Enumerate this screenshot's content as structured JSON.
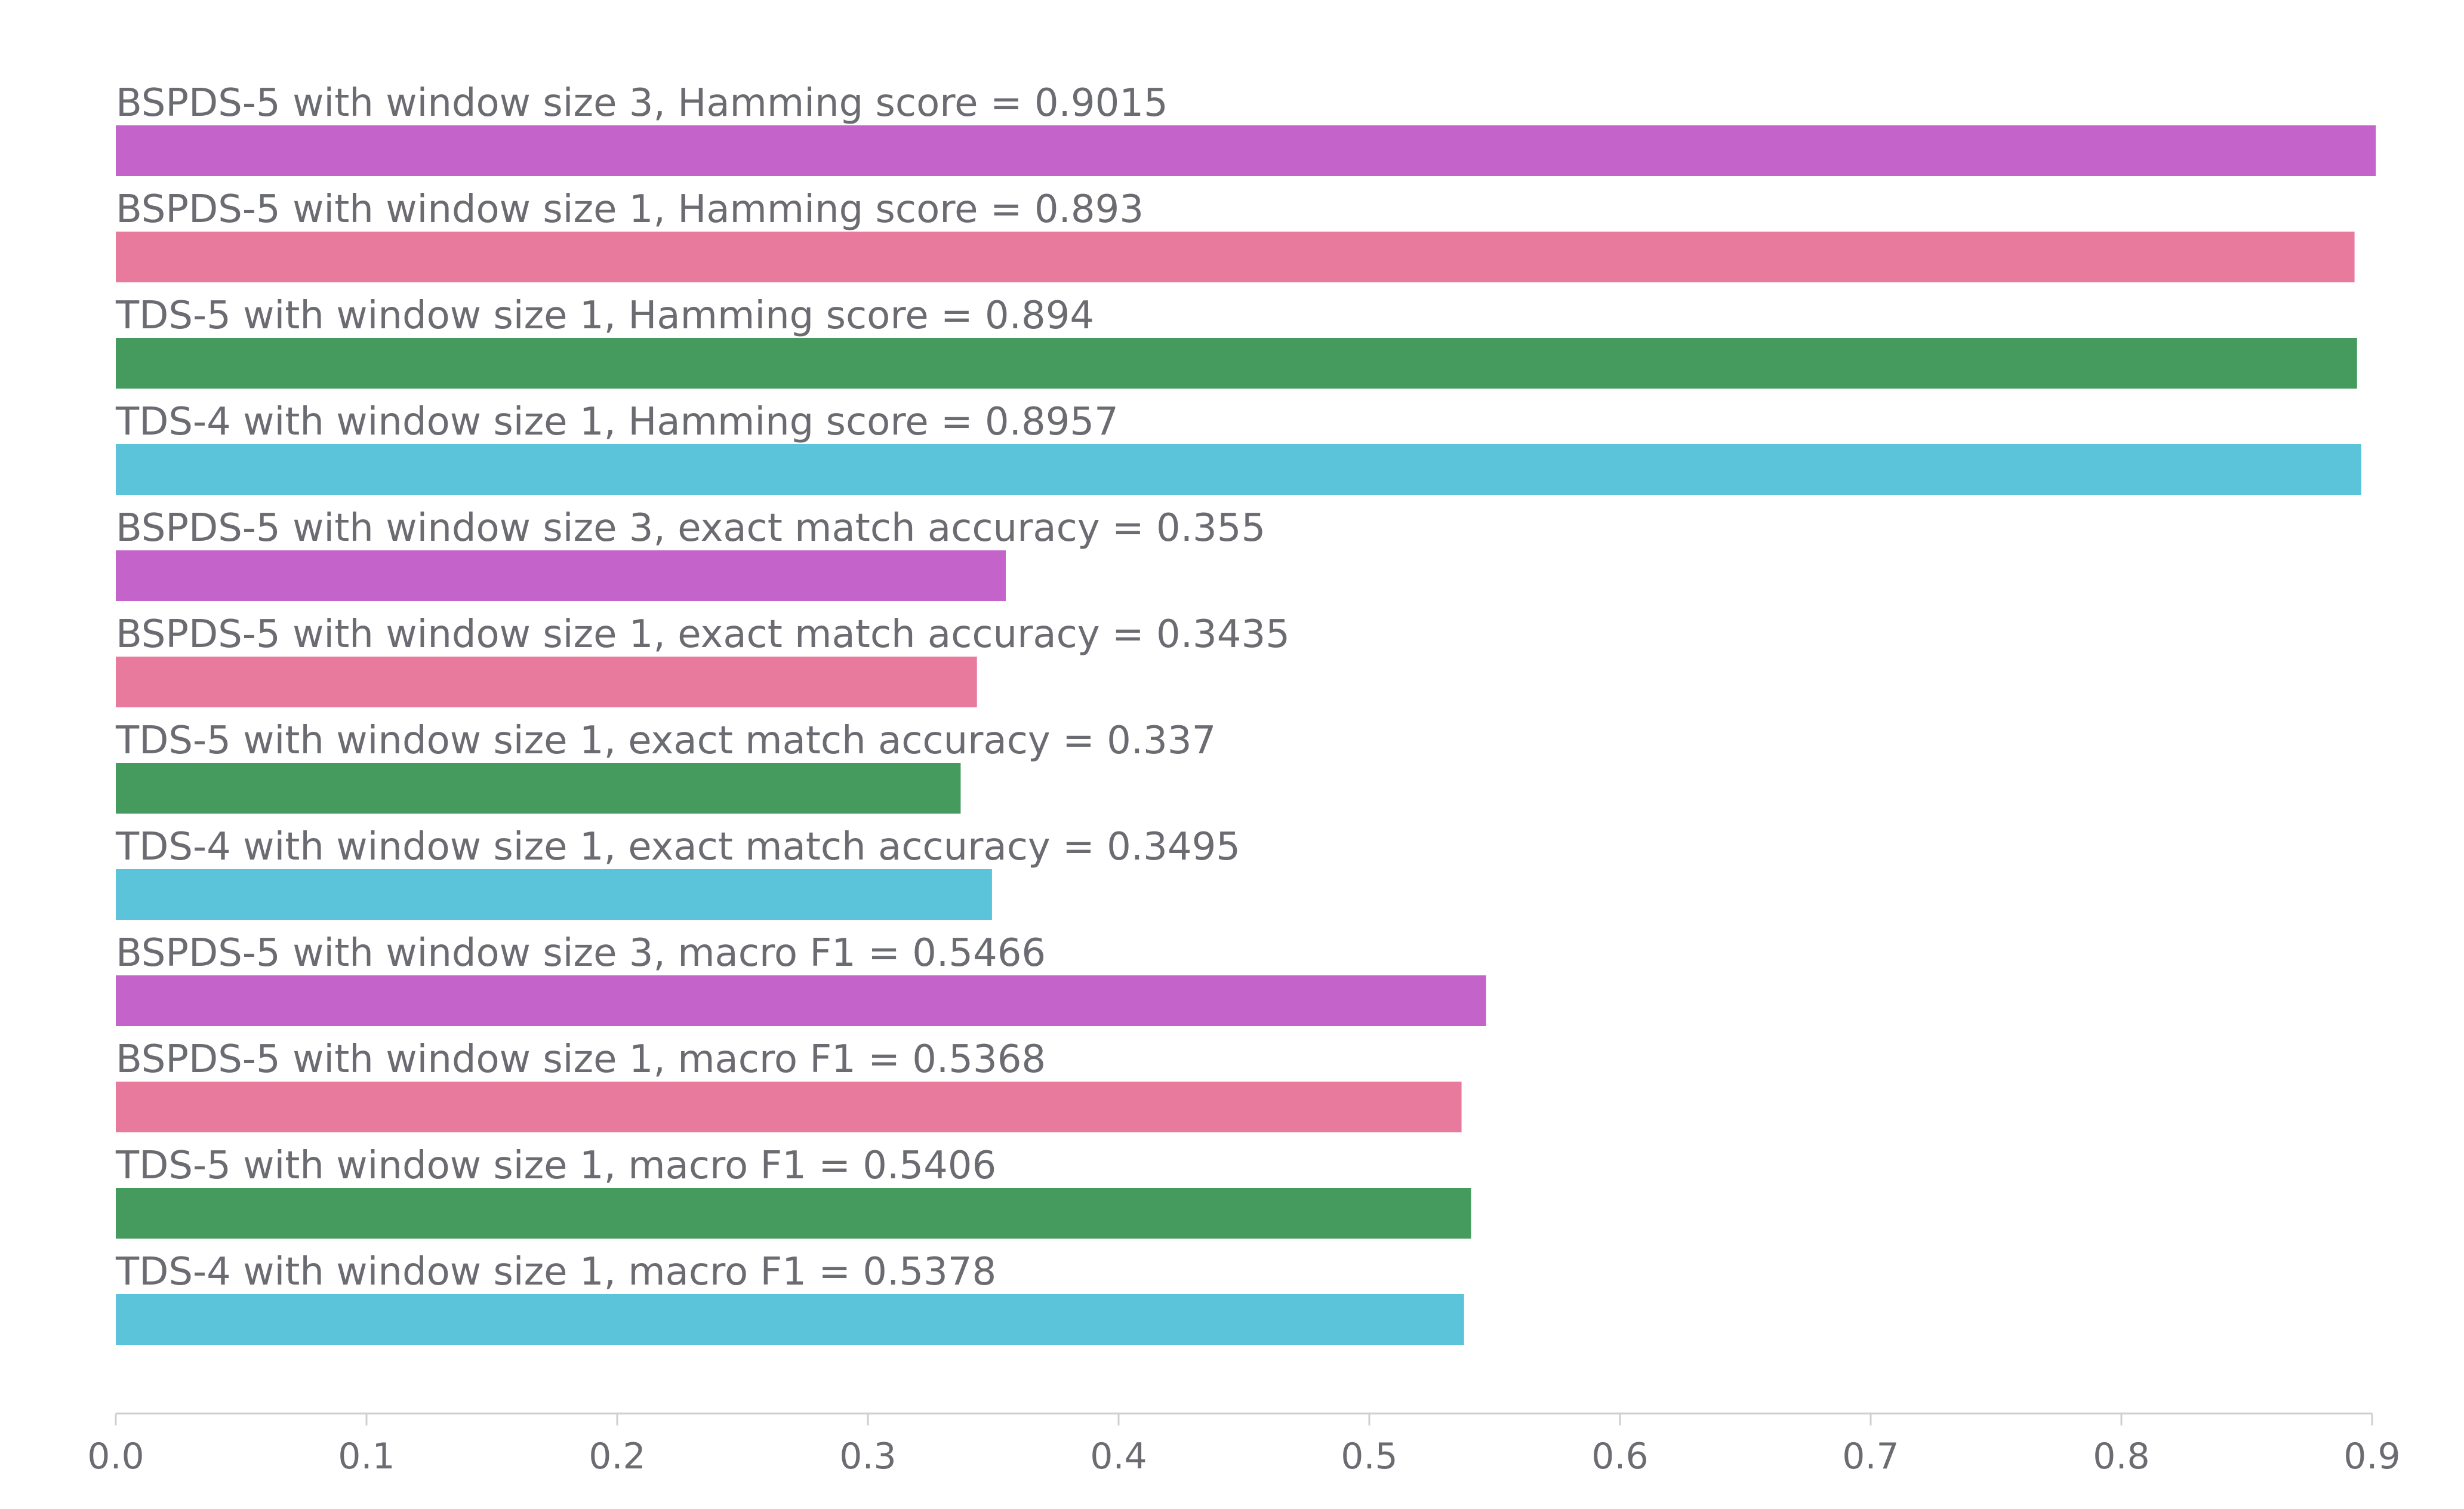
{
  "chart_data": {
    "type": "bar",
    "orientation": "horizontal",
    "title": "",
    "xlabel": "",
    "ylabel": "",
    "xlim": [
      0,
      0.9
    ],
    "grid": false,
    "x_ticks": [
      "0.0",
      "0.1",
      "0.2",
      "0.3",
      "0.4",
      "0.5",
      "0.6",
      "0.7",
      "0.8",
      "0.9"
    ],
    "bars": [
      {
        "label": "BSPDS-5 with window size 3, Hamming score = 0.9015",
        "value": 0.9015,
        "color": "#c463c9"
      },
      {
        "label": "BSPDS-5 with window size 1, Hamming score = 0.893",
        "value": 0.893,
        "color": "#e87a9e"
      },
      {
        "label": "TDS-5 with window size 1, Hamming score = 0.894",
        "value": 0.894,
        "color": "#459b5e"
      },
      {
        "label": "TDS-4 with window size 1, Hamming score = 0.8957",
        "value": 0.8957,
        "color": "#5bc4da"
      },
      {
        "label": "BSPDS-5 with window size 3, exact match accuracy = 0.355",
        "value": 0.355,
        "color": "#c463c9"
      },
      {
        "label": "BSPDS-5 with window size 1, exact match accuracy = 0.3435",
        "value": 0.3435,
        "color": "#e87a9e"
      },
      {
        "label": "TDS-5 with window size 1, exact match accuracy = 0.337",
        "value": 0.337,
        "color": "#459b5e"
      },
      {
        "label": "TDS-4 with window size 1, exact match accuracy = 0.3495",
        "value": 0.3495,
        "color": "#5bc4da"
      },
      {
        "label": "BSPDS-5 with window size 3, macro F1 = 0.5466",
        "value": 0.5466,
        "color": "#c463c9"
      },
      {
        "label": "BSPDS-5 with window size 1, macro F1 = 0.5368",
        "value": 0.5368,
        "color": "#e87a9e"
      },
      {
        "label": "TDS-5 with window size 1, macro F1 = 0.5406",
        "value": 0.5406,
        "color": "#459b5e"
      },
      {
        "label": "TDS-4 with window size 1, macro F1 = 0.5378",
        "value": 0.5378,
        "color": "#5bc4da"
      }
    ]
  }
}
